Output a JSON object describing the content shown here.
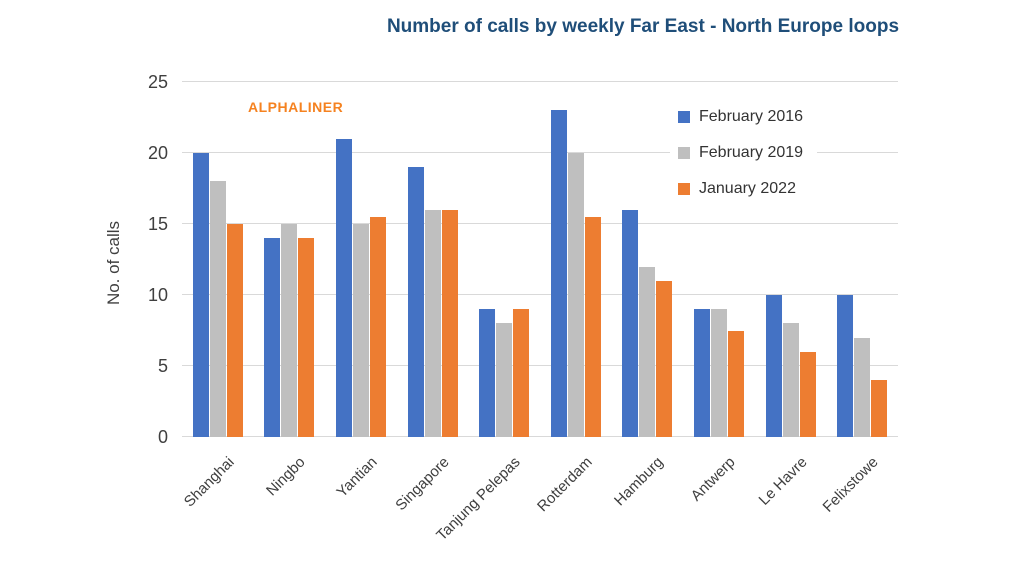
{
  "chart_data": {
    "type": "bar",
    "title": "Number of calls by weekly Far East - North Europe loops",
    "ylabel": "No. of calls",
    "xlabel": "",
    "watermark": "ALPHALINER",
    "categories": [
      "Shanghai",
      "Ningbo",
      "Yantian",
      "Singapore",
      "Tanjung Pelepas",
      "Rotterdam",
      "Hamburg",
      "Antwerp",
      "Le Havre",
      "Felixstowe"
    ],
    "series": [
      {
        "name": "February 2016",
        "color": "#4472C4",
        "values": [
          20,
          14,
          21,
          19,
          9,
          23,
          16,
          9,
          10,
          10
        ]
      },
      {
        "name": "February 2019",
        "color": "#BFBFBF",
        "values": [
          18,
          15,
          15,
          16,
          8,
          20,
          12,
          9,
          8,
          7
        ]
      },
      {
        "name": "January 2022",
        "color": "#ED7D31",
        "values": [
          15,
          14,
          15.5,
          16,
          9,
          15.5,
          11,
          7.5,
          6,
          4
        ]
      }
    ],
    "ylim": [
      0,
      25
    ],
    "yticks": [
      0,
      5,
      10,
      15,
      20,
      25
    ],
    "grid": true,
    "legend_position": "upper-right-inside",
    "colors": {
      "title": "#1F4E79",
      "watermark": "#F58220",
      "axis_text": "#3f3f3f",
      "gridline": "#D9D9D9",
      "background": "#FFFFFF"
    }
  }
}
